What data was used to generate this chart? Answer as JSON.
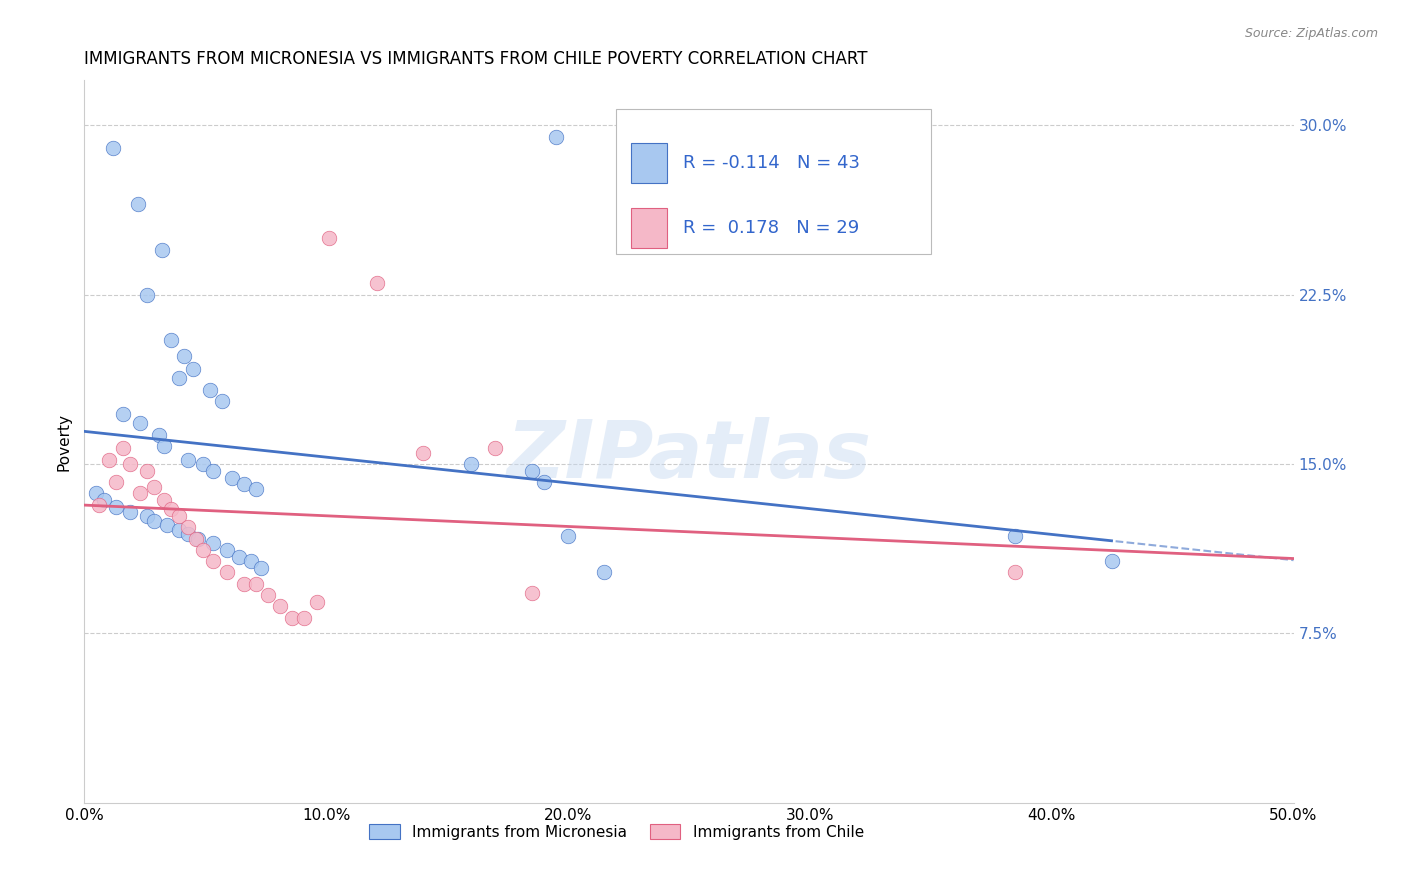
{
  "title": "IMMIGRANTS FROM MICRONESIA VS IMMIGRANTS FROM CHILE POVERTY CORRELATION CHART",
  "source": "Source: ZipAtlas.com",
  "ylabel": "Poverty",
  "legend_label1": "Immigrants from Micronesia",
  "legend_label2": "Immigrants from Chile",
  "r1": "-0.114",
  "n1": "43",
  "r2": "0.178",
  "n2": "29",
  "xlim": [
    0.0,
    0.5
  ],
  "ylim": [
    0.0,
    0.32
  ],
  "yticks": [
    0.075,
    0.15,
    0.225,
    0.3
  ],
  "ytick_labels": [
    "7.5%",
    "15.0%",
    "22.5%",
    "30.0%"
  ],
  "xticks": [
    0.0,
    0.1,
    0.2,
    0.3,
    0.4,
    0.5
  ],
  "xtick_labels": [
    "0.0%",
    "10.0%",
    "20.0%",
    "30.0%",
    "40.0%",
    "50.0%"
  ],
  "color_blue": "#A8C8F0",
  "color_pink": "#F5B8C8",
  "line_blue": "#4472C4",
  "line_pink": "#E06080",
  "watermark": "ZIPatlas",
  "micronesia_x": [
    0.012,
    0.022,
    0.032,
    0.026,
    0.036,
    0.041,
    0.045,
    0.039,
    0.052,
    0.057,
    0.016,
    0.023,
    0.031,
    0.033,
    0.043,
    0.049,
    0.053,
    0.061,
    0.066,
    0.071,
    0.005,
    0.008,
    0.013,
    0.019,
    0.026,
    0.029,
    0.034,
    0.039,
    0.043,
    0.047,
    0.053,
    0.059,
    0.064,
    0.069,
    0.073,
    0.16,
    0.185,
    0.19,
    0.2,
    0.215,
    0.385,
    0.425,
    0.195
  ],
  "micronesia_y": [
    0.29,
    0.265,
    0.245,
    0.225,
    0.205,
    0.198,
    0.192,
    0.188,
    0.183,
    0.178,
    0.172,
    0.168,
    0.163,
    0.158,
    0.152,
    0.15,
    0.147,
    0.144,
    0.141,
    0.139,
    0.137,
    0.134,
    0.131,
    0.129,
    0.127,
    0.125,
    0.123,
    0.121,
    0.119,
    0.117,
    0.115,
    0.112,
    0.109,
    0.107,
    0.104,
    0.15,
    0.147,
    0.142,
    0.118,
    0.102,
    0.118,
    0.107,
    0.295
  ],
  "chile_x": [
    0.006,
    0.01,
    0.013,
    0.016,
    0.019,
    0.023,
    0.026,
    0.029,
    0.033,
    0.036,
    0.039,
    0.043,
    0.046,
    0.049,
    0.053,
    0.059,
    0.066,
    0.071,
    0.076,
    0.081,
    0.086,
    0.091,
    0.096,
    0.101,
    0.121,
    0.14,
    0.17,
    0.185,
    0.385
  ],
  "chile_y": [
    0.132,
    0.152,
    0.142,
    0.157,
    0.15,
    0.137,
    0.147,
    0.14,
    0.134,
    0.13,
    0.127,
    0.122,
    0.117,
    0.112,
    0.107,
    0.102,
    0.097,
    0.097,
    0.092,
    0.087,
    0.082,
    0.082,
    0.089,
    0.25,
    0.23,
    0.155,
    0.157,
    0.093,
    0.102
  ]
}
